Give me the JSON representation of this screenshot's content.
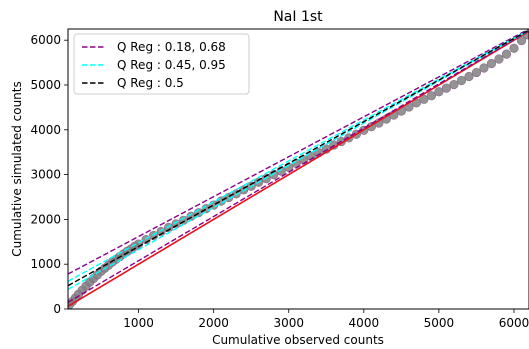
{
  "chart_data": {
    "type": "scatter",
    "title": "NaI 1st",
    "xlabel": "Cumulative observed counts",
    "ylabel": "Cumulative simulated counts",
    "xlim": [
      60,
      6200
    ],
    "ylim": [
      0,
      6250
    ],
    "xticks": [
      1000,
      2000,
      3000,
      4000,
      5000,
      6000
    ],
    "yticks": [
      0,
      1000,
      2000,
      3000,
      4000,
      5000,
      6000
    ],
    "legend_placement": "top-left",
    "grid": false,
    "colors": {
      "points": "#808080",
      "points_edge": "#8a6a8a",
      "identity": "#e8101c",
      "q_outer": "#8b008b",
      "q_inner": "#00ffff",
      "q_median": "#000000"
    },
    "points": {
      "x": [
        80,
        120,
        160,
        200,
        250,
        300,
        350,
        400,
        450,
        500,
        550,
        600,
        650,
        700,
        750,
        800,
        850,
        900,
        950,
        1000,
        1100,
        1200,
        1300,
        1400,
        1500,
        1600,
        1700,
        1800,
        1900,
        2000,
        2100,
        2200,
        2300,
        2400,
        2500,
        2600,
        2700,
        2800,
        2900,
        3000,
        3100,
        3200,
        3300,
        3400,
        3500,
        3600,
        3700,
        3800,
        3900,
        4000,
        4100,
        4200,
        4300,
        4400,
        4500,
        4600,
        4700,
        4800,
        4900,
        5000,
        5100,
        5200,
        5300,
        5400,
        5500,
        5600,
        5700,
        5800,
        5900,
        6000,
        6100,
        6180
      ],
      "y": [
        100,
        170,
        250,
        330,
        420,
        510,
        600,
        680,
        760,
        840,
        910,
        980,
        1050,
        1110,
        1170,
        1230,
        1290,
        1340,
        1400,
        1450,
        1550,
        1640,
        1730,
        1820,
        1900,
        1980,
        2070,
        2150,
        2240,
        2320,
        2410,
        2490,
        2570,
        2660,
        2740,
        2830,
        2910,
        3000,
        3080,
        3160,
        3250,
        3330,
        3410,
        3490,
        3570,
        3660,
        3740,
        3820,
        3900,
        3990,
        4070,
        4150,
        4240,
        4330,
        4420,
        4510,
        4600,
        4680,
        4760,
        4850,
        4930,
        5010,
        5100,
        5190,
        5280,
        5380,
        5480,
        5580,
        5690,
        5820,
        5990,
        6120
      ]
    },
    "lines": [
      {
        "name": "identity",
        "style": "solid",
        "x": [
          60,
          6200
        ],
        "y": [
          60,
          6200
        ]
      },
      {
        "name": "Q Reg : 0.18, 0.68",
        "style": "dashed",
        "x": [
          60,
          6200
        ],
        "y": [
          780,
          6250
        ]
      },
      {
        "name": "Q Reg : 0.18, 0.68",
        "style": "dashed",
        "x": [
          60,
          6200
        ],
        "y": [
          150,
          6210
        ]
      },
      {
        "name": "Q Reg : 0.45, 0.95",
        "style": "dashed",
        "x": [
          60,
          6200
        ],
        "y": [
          620,
          6230
        ]
      },
      {
        "name": "Q Reg : 0.45, 0.95",
        "style": "dashed",
        "x": [
          60,
          6200
        ],
        "y": [
          440,
          6220
        ]
      },
      {
        "name": "Q Reg : 0.5",
        "style": "dashed",
        "x": [
          60,
          6200
        ],
        "y": [
          520,
          6225
        ]
      }
    ],
    "legend": [
      {
        "label": "Q Reg : 0.18, 0.68",
        "color": "#8b008b"
      },
      {
        "label": "Q Reg : 0.45, 0.95",
        "color": "#00ffff"
      },
      {
        "label": "Q Reg : 0.5",
        "color": "#000000"
      }
    ]
  }
}
